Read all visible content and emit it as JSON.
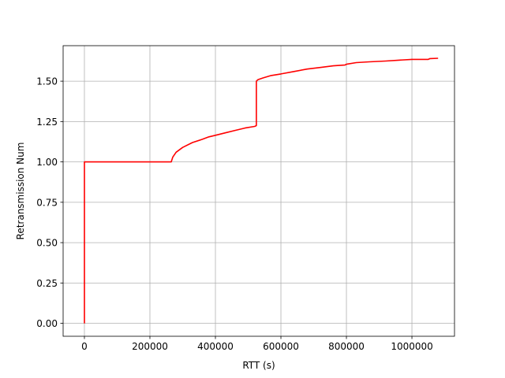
{
  "chart_data": {
    "type": "line",
    "title": "",
    "xlabel": "RTT (s)",
    "ylabel": "Retransmission Num",
    "xlim": [
      -65000,
      1130000
    ],
    "ylim": [
      -0.08,
      1.72
    ],
    "xticks": [
      0,
      200000,
      400000,
      600000,
      800000,
      1000000
    ],
    "xtick_labels": [
      "0",
      "200000",
      "400000",
      "600000",
      "800000",
      "1000000"
    ],
    "yticks": [
      0.0,
      0.25,
      0.5,
      0.75,
      1.0,
      1.25,
      1.5
    ],
    "ytick_labels": [
      "0.00",
      "0.25",
      "0.50",
      "0.75",
      "1.00",
      "1.25",
      "1.50"
    ],
    "grid": true,
    "legend": "none",
    "series": [
      {
        "color": "#ff0000",
        "x": [
          0,
          0,
          5000,
          100000,
          200000,
          265000,
          270000,
          280000,
          300000,
          330000,
          360000,
          380000,
          400000,
          430000,
          460000,
          490000,
          520000,
          525000,
          525000,
          530000,
          545000,
          570000,
          600000,
          640000,
          680000,
          720000,
          760000,
          795000,
          800000,
          830000,
          870000,
          920000,
          960000,
          1000000,
          1050000,
          1055000,
          1080000
        ],
        "y": [
          0.0,
          1.0,
          1.0,
          1.0,
          1.0,
          1.0,
          1.03,
          1.06,
          1.09,
          1.12,
          1.14,
          1.155,
          1.165,
          1.18,
          1.195,
          1.21,
          1.22,
          1.225,
          1.5,
          1.51,
          1.52,
          1.535,
          1.545,
          1.56,
          1.575,
          1.585,
          1.595,
          1.6,
          1.605,
          1.615,
          1.62,
          1.625,
          1.63,
          1.635,
          1.635,
          1.64,
          1.642
        ]
      }
    ]
  }
}
